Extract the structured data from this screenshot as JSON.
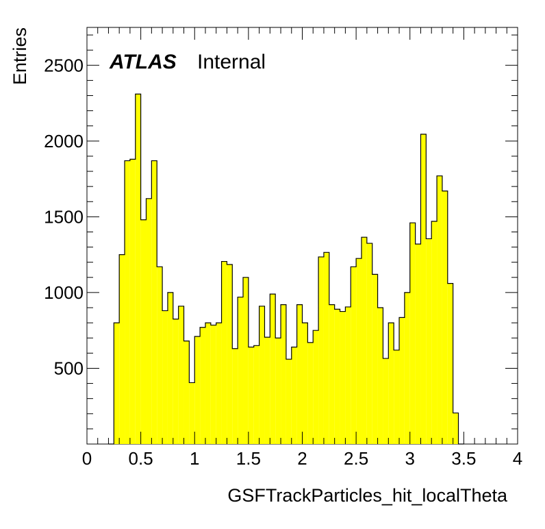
{
  "chart_data": {
    "type": "histogram",
    "xlabel": "GSFTrackParticles_hit_localTheta",
    "ylabel": "Entries",
    "xlim": [
      0,
      4
    ],
    "ylim": [
      0,
      2750
    ],
    "bin_width": 0.05,
    "bin_start": 0.2,
    "fill_color": "#ffff00",
    "line_color": "#000000",
    "x_ticks": [
      0,
      0.5,
      1,
      1.5,
      2,
      2.5,
      3,
      3.5,
      4
    ],
    "x_tick_labels": [
      "0",
      "0.5",
      "1",
      "1.5",
      "2",
      "2.5",
      "3",
      "3.5",
      "4"
    ],
    "y_ticks": [
      500,
      1000,
      1500,
      2000,
      2500
    ],
    "y_tick_labels": [
      "500",
      "1000",
      "1500",
      "2000",
      "2500"
    ],
    "values": [
      0,
      800,
      1250,
      1870,
      1880,
      2310,
      1480,
      1620,
      1870,
      1170,
      880,
      1000,
      825,
      910,
      680,
      405,
      710,
      770,
      800,
      785,
      800,
      1205,
      1185,
      630,
      970,
      1100,
      640,
      650,
      910,
      705,
      990,
      700,
      920,
      560,
      640,
      920,
      800,
      670,
      750,
      1235,
      1265,
      920,
      890,
      875,
      905,
      1170,
      1225,
      1365,
      1325,
      1120,
      900,
      565,
      800,
      620,
      835,
      1000,
      1460,
      1320,
      2045,
      1355,
      1470,
      1770,
      1670,
      1060,
      205,
      0
    ]
  },
  "annotation": {
    "brand": "ATLAS",
    "label": "Internal"
  }
}
